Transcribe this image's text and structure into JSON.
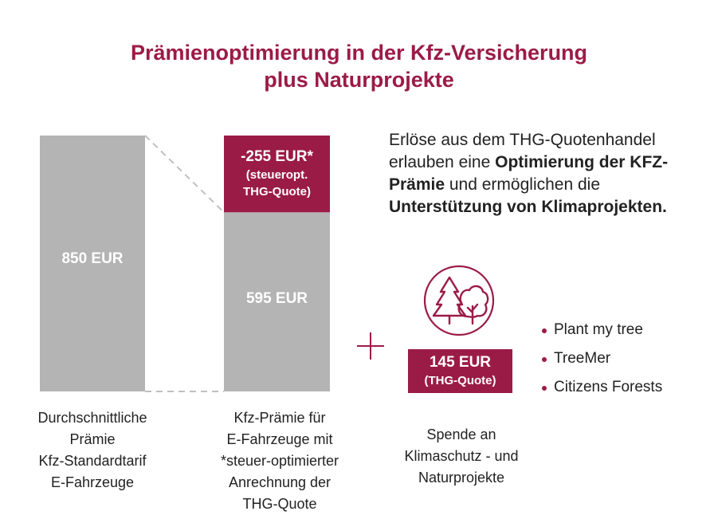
{
  "colors": {
    "accent": "#9b1b47",
    "bar_gray": "#b4b4b4",
    "dash": "#c0c0c0"
  },
  "title": {
    "line1": "Prämienoptimierung in der Kfz-Versicherung",
    "line2": "plus Naturprojekte"
  },
  "chart_data": {
    "type": "bar",
    "stacked": true,
    "categories": [
      "Durchschnittliche Prämie Kfz-Standardtarif E-Fahrzeuge",
      "Kfz-Prämie für E-Fahrzeuge mit *steuer-optimierter Anrechnung der THG-Quote"
    ],
    "series": [
      {
        "values": [
          850,
          595
        ]
      },
      {
        "values": [
          0,
          255
        ]
      }
    ],
    "labels": {
      "bar1": "850 EUR",
      "bar2": "595 EUR",
      "reduction_main": "-255 EUR*",
      "reduction_sub1": "(steueropt.",
      "reduction_sub2": "THG-Quote)"
    },
    "ylim": [
      0,
      850
    ],
    "grid": false,
    "legend": "none"
  },
  "captions": {
    "bar1": [
      "Durchschnittliche",
      "Prämie",
      "Kfz-Standardtarif",
      "E-Fahrzeuge"
    ],
    "bar2": [
      "Kfz-Prämie für",
      "E-Fahrzeuge mit",
      "*steuer-optimierter",
      "Anrechnung der",
      "THG-Quote"
    ],
    "donation": [
      "Spende an",
      "Klimaschutz - und",
      "Naturprojekte"
    ]
  },
  "description": {
    "part1": "Erlöse aus dem THG-Quotenhandel erlauben eine ",
    "bold1": "Optimierung der KFZ-Prämie",
    "part2": " und ermöglichen die ",
    "bold2": "Unterstützung von Klimaprojekten."
  },
  "donation": {
    "amount": "145 EUR",
    "note": "(THG-Quote)",
    "icon": "trees-icon"
  },
  "projects": [
    "Plant my tree",
    "TreeMer",
    "Citizens Forests"
  ]
}
